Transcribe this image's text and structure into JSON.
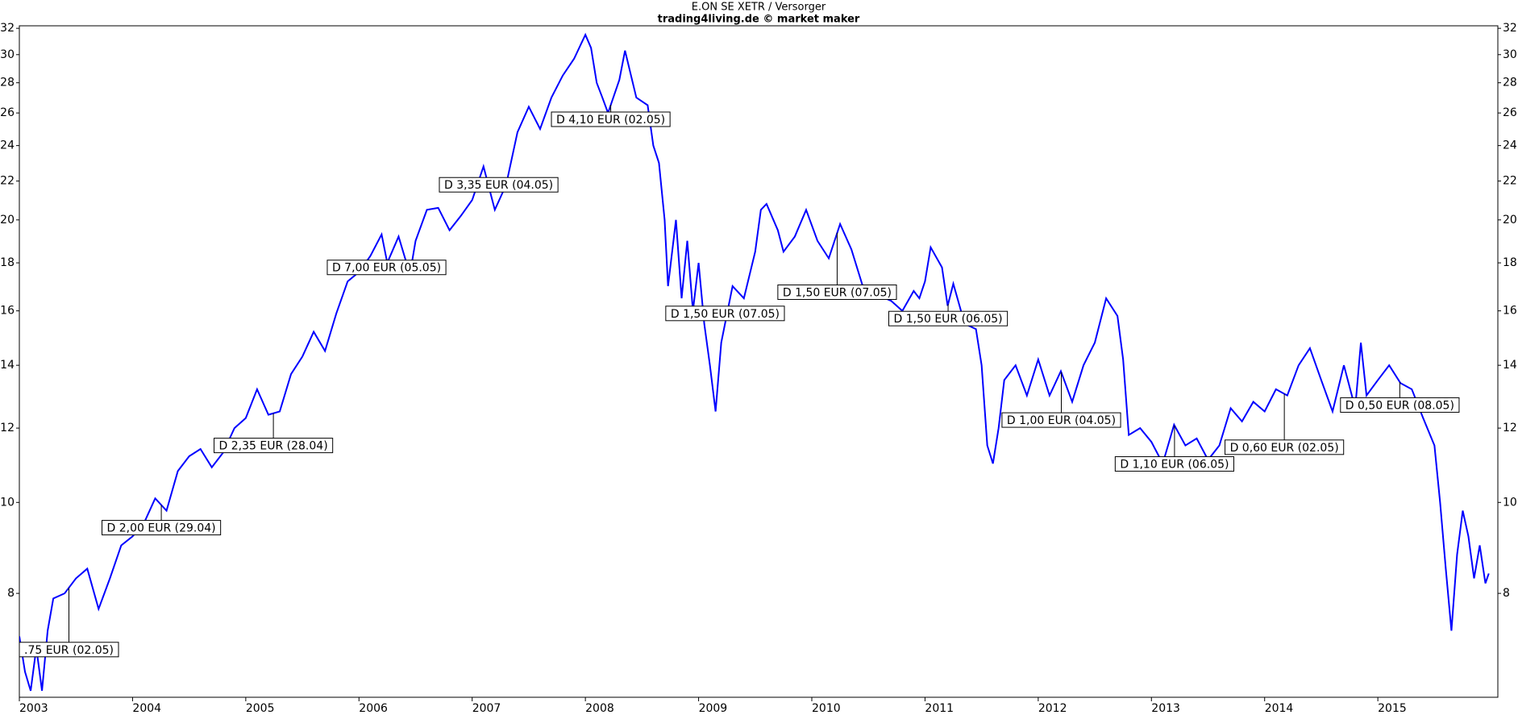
{
  "chart_data": {
    "type": "line",
    "title": "E.ON SE XETR / Versorger",
    "subtitle": "trading4living.de © market maker",
    "log": true,
    "xlim": [
      2003.0,
      2016.06
    ],
    "xticks": [
      2003,
      2004,
      2005,
      2006,
      2007,
      2008,
      2009,
      2010,
      2011,
      2012,
      2013,
      2014,
      2015
    ],
    "ylim": [
      6.2,
      32.2
    ],
    "yticks": [
      8,
      10,
      12,
      14,
      16,
      18,
      20,
      22,
      24,
      26,
      28,
      30,
      32
    ],
    "x": [
      2003.0,
      2003.05,
      2003.1,
      2003.15,
      2003.2,
      2003.25,
      2003.3,
      2003.4,
      2003.5,
      2003.6,
      2003.7,
      2003.8,
      2003.9,
      2004.0,
      2004.1,
      2004.2,
      2004.3,
      2004.4,
      2004.5,
      2004.6,
      2004.7,
      2004.8,
      2004.9,
      2005.0,
      2005.1,
      2005.2,
      2005.3,
      2005.4,
      2005.5,
      2005.6,
      2005.7,
      2005.8,
      2005.9,
      2006.0,
      2006.1,
      2006.2,
      2006.25,
      2006.35,
      2006.45,
      2006.5,
      2006.6,
      2006.7,
      2006.8,
      2006.9,
      2007.0,
      2007.1,
      2007.2,
      2007.3,
      2007.4,
      2007.5,
      2007.6,
      2007.7,
      2007.8,
      2007.9,
      2008.0,
      2008.05,
      2008.1,
      2008.15,
      2008.2,
      2008.3,
      2008.35,
      2008.45,
      2008.55,
      2008.6,
      2008.65,
      2008.7,
      2008.73,
      2008.8,
      2008.85,
      2008.9,
      2008.95,
      2009.0,
      2009.05,
      2009.1,
      2009.15,
      2009.2,
      2009.3,
      2009.4,
      2009.5,
      2009.55,
      2009.6,
      2009.7,
      2009.75,
      2009.85,
      2009.95,
      2010.05,
      2010.15,
      2010.25,
      2010.35,
      2010.45,
      2010.6,
      2010.7,
      2010.8,
      2010.9,
      2010.95,
      2011.0,
      2011.05,
      2011.15,
      2011.2,
      2011.25,
      2011.35,
      2011.45,
      2011.5,
      2011.55,
      2011.6,
      2011.65,
      2011.7,
      2011.8,
      2011.9,
      2012.0,
      2012.1,
      2012.2,
      2012.3,
      2012.4,
      2012.5,
      2012.6,
      2012.7,
      2012.75,
      2012.8,
      2012.9,
      2013.0,
      2013.1,
      2013.2,
      2013.3,
      2013.4,
      2013.5,
      2013.6,
      2013.7,
      2013.8,
      2013.9,
      2014.0,
      2014.1,
      2014.2,
      2014.3,
      2014.4,
      2014.5,
      2014.6,
      2014.7,
      2014.8,
      2014.85,
      2014.9,
      2015.0,
      2015.1,
      2015.2,
      2015.3,
      2015.4,
      2015.5,
      2015.55,
      2015.6,
      2015.65,
      2015.7,
      2015.75,
      2015.8,
      2015.85,
      2015.9,
      2015.95,
      2015.98
    ],
    "series": [
      {
        "color": "#0000ff",
        "values": [
          7.2,
          6.6,
          6.3,
          7.0,
          6.3,
          7.3,
          7.9,
          8.0,
          8.3,
          8.5,
          7.7,
          8.3,
          9.0,
          9.2,
          9.5,
          10.1,
          9.8,
          10.8,
          11.2,
          11.4,
          10.9,
          11.3,
          12.0,
          12.3,
          13.2,
          12.4,
          12.5,
          13.7,
          14.3,
          15.2,
          14.5,
          15.9,
          17.2,
          17.6,
          18.3,
          19.3,
          18.0,
          19.2,
          17.5,
          19.0,
          20.5,
          20.6,
          19.5,
          20.2,
          21.0,
          22.8,
          20.5,
          21.8,
          24.8,
          26.4,
          25.0,
          27.0,
          28.5,
          29.7,
          31.5,
          30.5,
          28.0,
          27.0,
          26.0,
          28.2,
          30.3,
          27.0,
          26.5,
          24.0,
          23.0,
          20.0,
          17.0,
          20.0,
          16.5,
          19.0,
          16.0,
          18.0,
          15.5,
          14.0,
          12.5,
          14.8,
          17.0,
          16.5,
          18.5,
          20.5,
          20.8,
          19.5,
          18.5,
          19.2,
          20.5,
          19.0,
          18.2,
          19.8,
          18.6,
          17.0,
          16.6,
          16.4,
          16.0,
          16.8,
          16.5,
          17.2,
          18.7,
          17.8,
          16.2,
          17.1,
          15.5,
          15.3,
          14.0,
          11.5,
          11.0,
          12.0,
          13.5,
          14.0,
          13.0,
          14.2,
          13.0,
          13.8,
          12.8,
          14.0,
          14.8,
          16.5,
          15.8,
          14.2,
          11.8,
          12.0,
          11.6,
          11.0,
          12.1,
          11.5,
          11.7,
          11.1,
          11.5,
          12.6,
          12.2,
          12.8,
          12.5,
          13.2,
          13.0,
          14.0,
          14.6,
          13.5,
          12.5,
          14.0,
          12.6,
          14.8,
          13.0,
          13.5,
          14.0,
          13.4,
          13.2,
          12.3,
          11.5,
          10.0,
          8.5,
          7.3,
          8.8,
          9.8,
          9.2,
          8.3,
          9.0,
          8.2,
          8.4
        ]
      }
    ],
    "annotations": [
      {
        "text": ".75 EUR (02.05)",
        "x": 2003.0,
        "y": 6.97
      },
      {
        "text": "D 2,00 EUR (29.04)",
        "x": 2003.73,
        "y": 9.4
      },
      {
        "text": "D 2,35 EUR (28.04)",
        "x": 2004.72,
        "y": 11.5
      },
      {
        "text": "D 7,00 EUR (05.05)",
        "x": 2005.72,
        "y": 17.8
      },
      {
        "text": "D 3,35 EUR (04.05)",
        "x": 2006.71,
        "y": 21.8
      },
      {
        "text": "D 4,10 EUR (02.05)",
        "x": 2007.7,
        "y": 25.6
      },
      {
        "text": "D 1,50 EUR (07.05)",
        "x": 2008.71,
        "y": 15.9
      },
      {
        "text": "D 1,50 EUR (07.05)",
        "x": 2009.7,
        "y": 16.75
      },
      {
        "text": "D 1,50 EUR (06.05)",
        "x": 2010.68,
        "y": 15.7
      },
      {
        "text": "D 1,00 EUR (04.05)",
        "x": 2011.68,
        "y": 12.24
      },
      {
        "text": "D 1,10 EUR (06.05)",
        "x": 2012.68,
        "y": 10.99
      },
      {
        "text": "D 0,60 EUR (02.05)",
        "x": 2013.65,
        "y": 11.45
      },
      {
        "text": "D 0,50 EUR (08.05)",
        "x": 2014.67,
        "y": 12.7
      }
    ]
  }
}
